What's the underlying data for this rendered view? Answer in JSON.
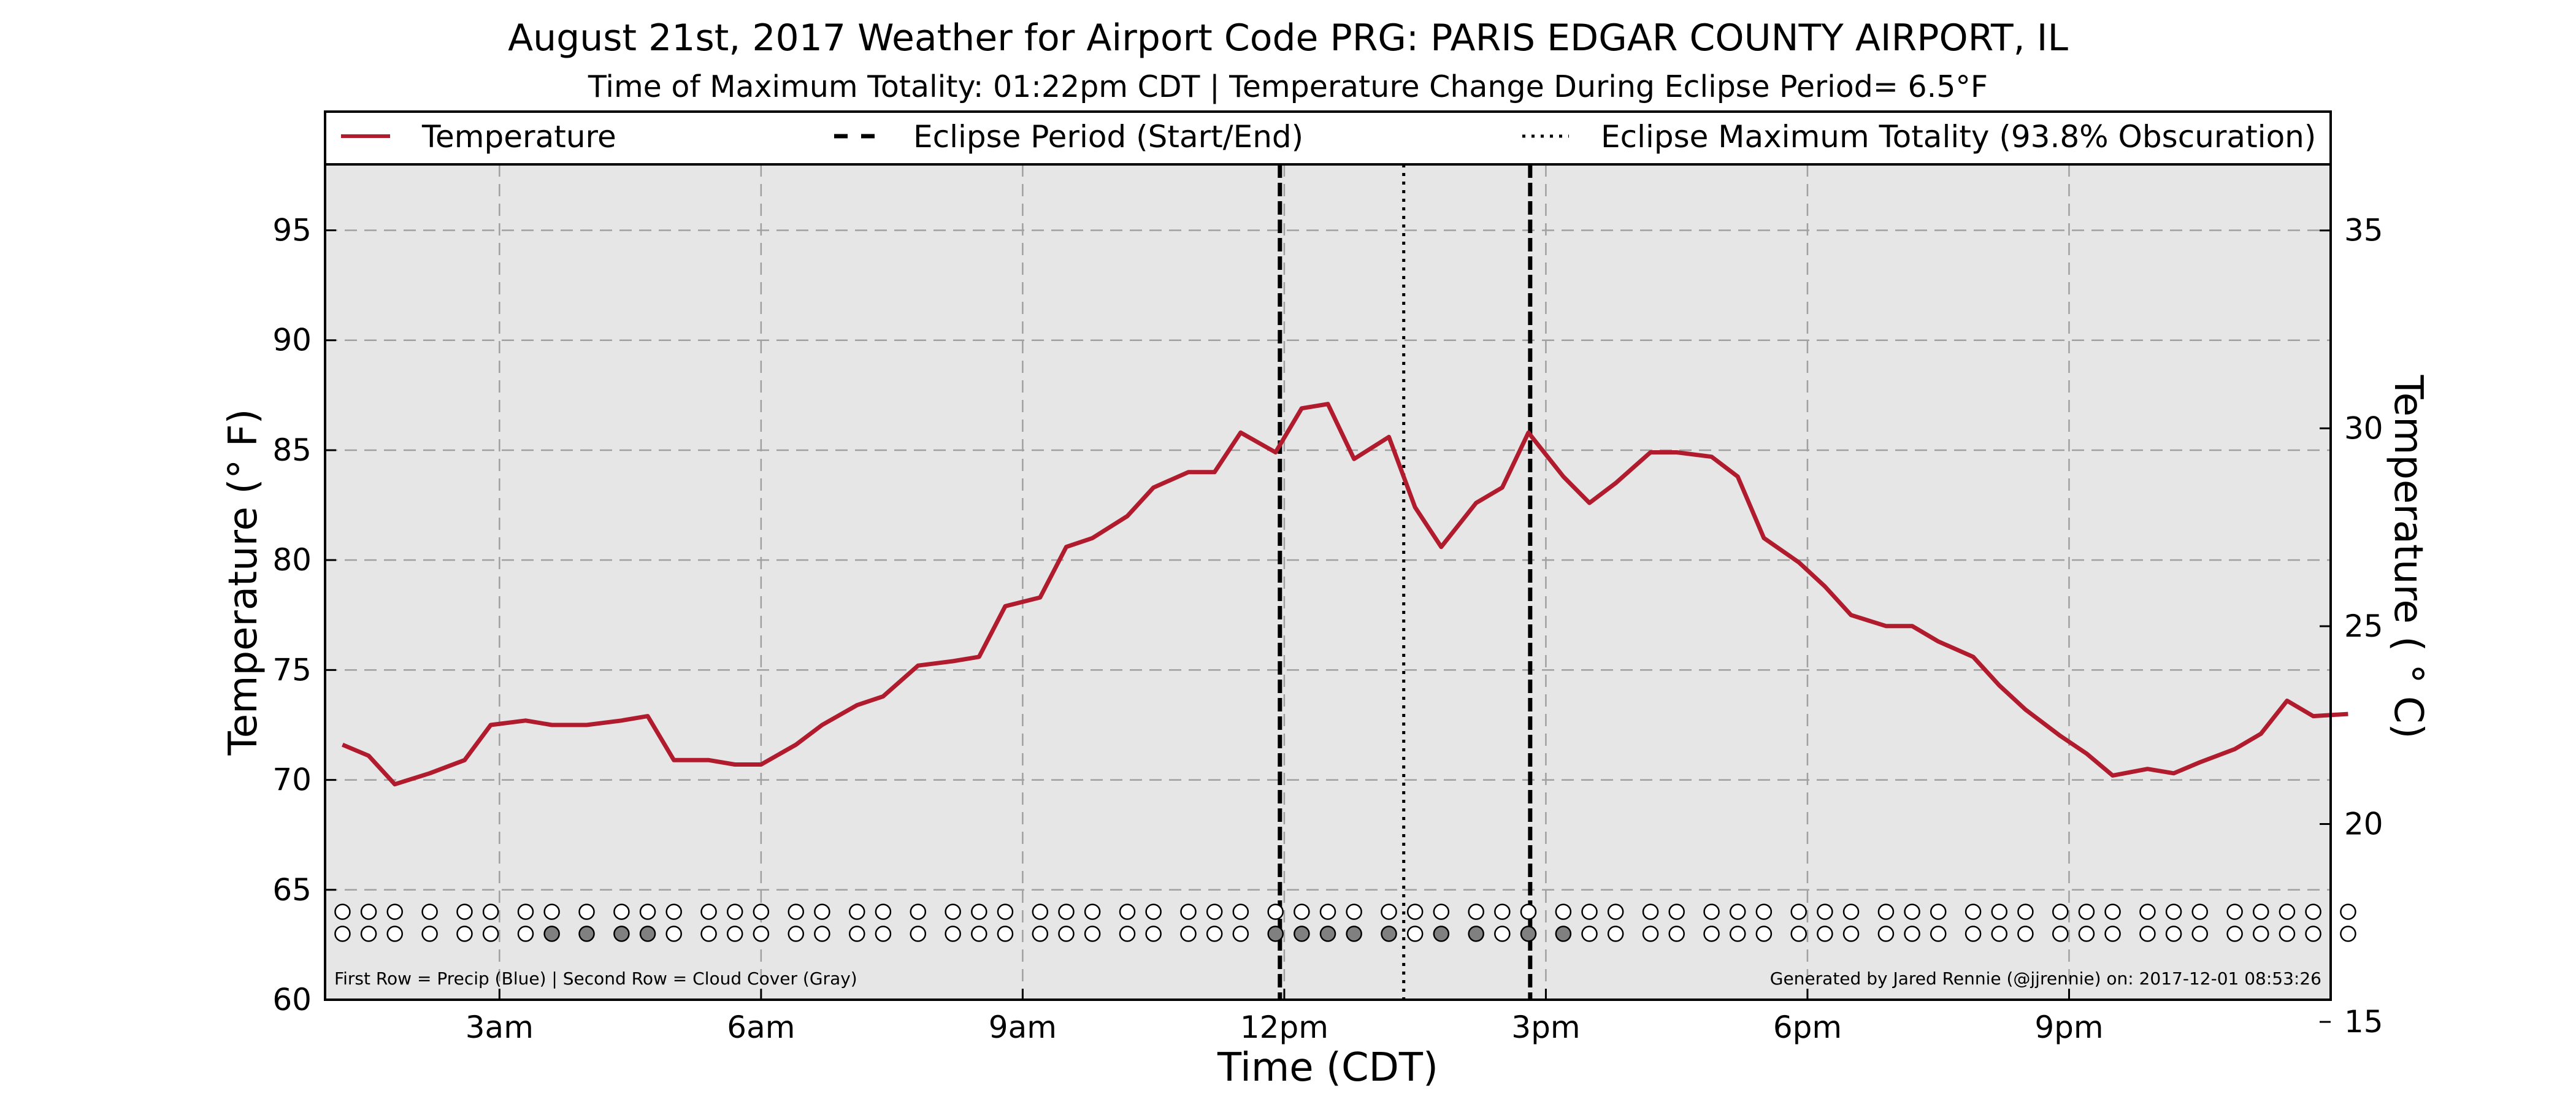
{
  "chart_data": {
    "type": "line",
    "title": "August 21st, 2017 Weather for Airport Code PRG: PARIS EDGAR COUNTY AIRPORT, IL",
    "subtitle": "Time of Maximum Totality: 01:22pm CDT | Temperature Change During Eclipse Period= 6.5°F",
    "xlabel": "Time (CDT)",
    "ylabel_left": "Temperature (° F)",
    "ylabel_right": "Temperature ( ° C)",
    "x_unit": "hours after midnight CDT",
    "xlim": [
      1.0,
      24.0
    ],
    "x_ticks": [
      {
        "value": 3,
        "label": "3am"
      },
      {
        "value": 6,
        "label": "6am"
      },
      {
        "value": 9,
        "label": "9am"
      },
      {
        "value": 12,
        "label": "12pm"
      },
      {
        "value": 15,
        "label": "3pm"
      },
      {
        "value": 18,
        "label": "6pm"
      },
      {
        "value": 21,
        "label": "9pm"
      }
    ],
    "ylim_left": [
      60,
      98
    ],
    "y_ticks_left": [
      "60",
      "65",
      "70",
      "75",
      "80",
      "85",
      "90",
      "95"
    ],
    "ylim_right": [
      15.56,
      36.67
    ],
    "y_ticks_right": [
      "15",
      "20",
      "25",
      "30",
      "35"
    ],
    "grid": true,
    "legend_position": "top",
    "series": [
      {
        "name": "Temperature",
        "color": "#b01c2e",
        "points": [
          [
            1.2,
            71.6
          ],
          [
            1.5,
            71.1
          ],
          [
            1.8,
            69.8
          ],
          [
            2.2,
            70.3
          ],
          [
            2.6,
            70.9
          ],
          [
            2.9,
            72.5
          ],
          [
            3.3,
            72.7
          ],
          [
            3.6,
            72.5
          ],
          [
            4.0,
            72.5
          ],
          [
            4.4,
            72.7
          ],
          [
            4.7,
            72.9
          ],
          [
            5.0,
            70.9
          ],
          [
            5.4,
            70.9
          ],
          [
            5.7,
            70.7
          ],
          [
            6.0,
            70.7
          ],
          [
            6.4,
            71.6
          ],
          [
            6.7,
            72.5
          ],
          [
            7.1,
            73.4
          ],
          [
            7.4,
            73.8
          ],
          [
            7.8,
            75.2
          ],
          [
            8.2,
            75.4
          ],
          [
            8.5,
            75.6
          ],
          [
            8.8,
            77.9
          ],
          [
            9.2,
            78.3
          ],
          [
            9.5,
            80.6
          ],
          [
            9.8,
            81.0
          ],
          [
            10.2,
            82.0
          ],
          [
            10.5,
            83.3
          ],
          [
            10.9,
            84.0
          ],
          [
            11.2,
            84.0
          ],
          [
            11.5,
            85.8
          ],
          [
            11.9,
            84.9
          ],
          [
            12.2,
            86.9
          ],
          [
            12.5,
            87.1
          ],
          [
            12.8,
            84.6
          ],
          [
            13.2,
            85.6
          ],
          [
            13.5,
            82.4
          ],
          [
            13.8,
            80.6
          ],
          [
            14.2,
            82.6
          ],
          [
            14.5,
            83.3
          ],
          [
            14.8,
            85.8
          ],
          [
            15.2,
            83.8
          ],
          [
            15.5,
            82.6
          ],
          [
            15.8,
            83.5
          ],
          [
            16.2,
            84.9
          ],
          [
            16.5,
            84.9
          ],
          [
            16.9,
            84.7
          ],
          [
            17.2,
            83.8
          ],
          [
            17.5,
            81.0
          ],
          [
            17.9,
            79.9
          ],
          [
            18.2,
            78.8
          ],
          [
            18.5,
            77.5
          ],
          [
            18.9,
            77.0
          ],
          [
            19.2,
            77.0
          ],
          [
            19.5,
            76.3
          ],
          [
            19.9,
            75.6
          ],
          [
            20.2,
            74.3
          ],
          [
            20.5,
            73.2
          ],
          [
            20.9,
            72.0
          ],
          [
            21.2,
            71.2
          ],
          [
            21.5,
            70.2
          ],
          [
            21.9,
            70.5
          ],
          [
            22.2,
            70.3
          ],
          [
            22.5,
            70.8
          ],
          [
            22.9,
            71.4
          ],
          [
            23.2,
            72.1
          ],
          [
            23.5,
            73.6
          ],
          [
            23.8,
            72.9
          ],
          [
            24.2,
            73.0
          ]
        ]
      }
    ],
    "eclipse_start": 11.95,
    "eclipse_end": 14.82,
    "eclipse_max_totality": 13.37,
    "legend": [
      {
        "label": "Temperature",
        "style": "solid",
        "color": "#b01c2e"
      },
      {
        "label": "Eclipse Period (Start/End)",
        "style": "dashed",
        "color": "#000000"
      },
      {
        "label": "Eclipse Maximum Totality (93.8% Obscuration)",
        "style": "dotted",
        "color": "#000000"
      }
    ],
    "marker_rows": {
      "precip_y": 64.0,
      "cloud_y": 63.0,
      "x": [
        1.2,
        1.5,
        1.8,
        2.2,
        2.6,
        2.9,
        3.3,
        3.6,
        4.0,
        4.4,
        4.7,
        5.0,
        5.4,
        5.7,
        6.0,
        6.4,
        6.7,
        7.1,
        7.4,
        7.8,
        8.2,
        8.5,
        8.8,
        9.2,
        9.5,
        9.8,
        10.2,
        10.5,
        10.9,
        11.2,
        11.5,
        11.9,
        12.2,
        12.5,
        12.8,
        13.2,
        13.5,
        13.8,
        14.2,
        14.5,
        14.8,
        15.2,
        15.5,
        15.8,
        16.2,
        16.5,
        16.9,
        17.2,
        17.5,
        17.9,
        18.2,
        18.5,
        18.9,
        19.2,
        19.5,
        19.9,
        20.2,
        20.5,
        20.9,
        21.2,
        21.5,
        21.9,
        22.2,
        22.5,
        22.9,
        23.2,
        23.5,
        23.8,
        24.2
      ],
      "cloud_gray_x": [
        3.6,
        4.0,
        4.4,
        4.7,
        11.9,
        12.2,
        12.5,
        12.8,
        13.2,
        13.8,
        14.2,
        14.8,
        15.2
      ],
      "precip_blue_x": [],
      "gray_color": "#808080",
      "blue_color": "#1f5fcf"
    },
    "footnote_left": "First Row = Precip (Blue) | Second Row = Cloud Cover (Gray)",
    "footnote_right": "Generated by Jared Rennie (@jjrennie) on: 2017-12-01 08:53:26"
  }
}
